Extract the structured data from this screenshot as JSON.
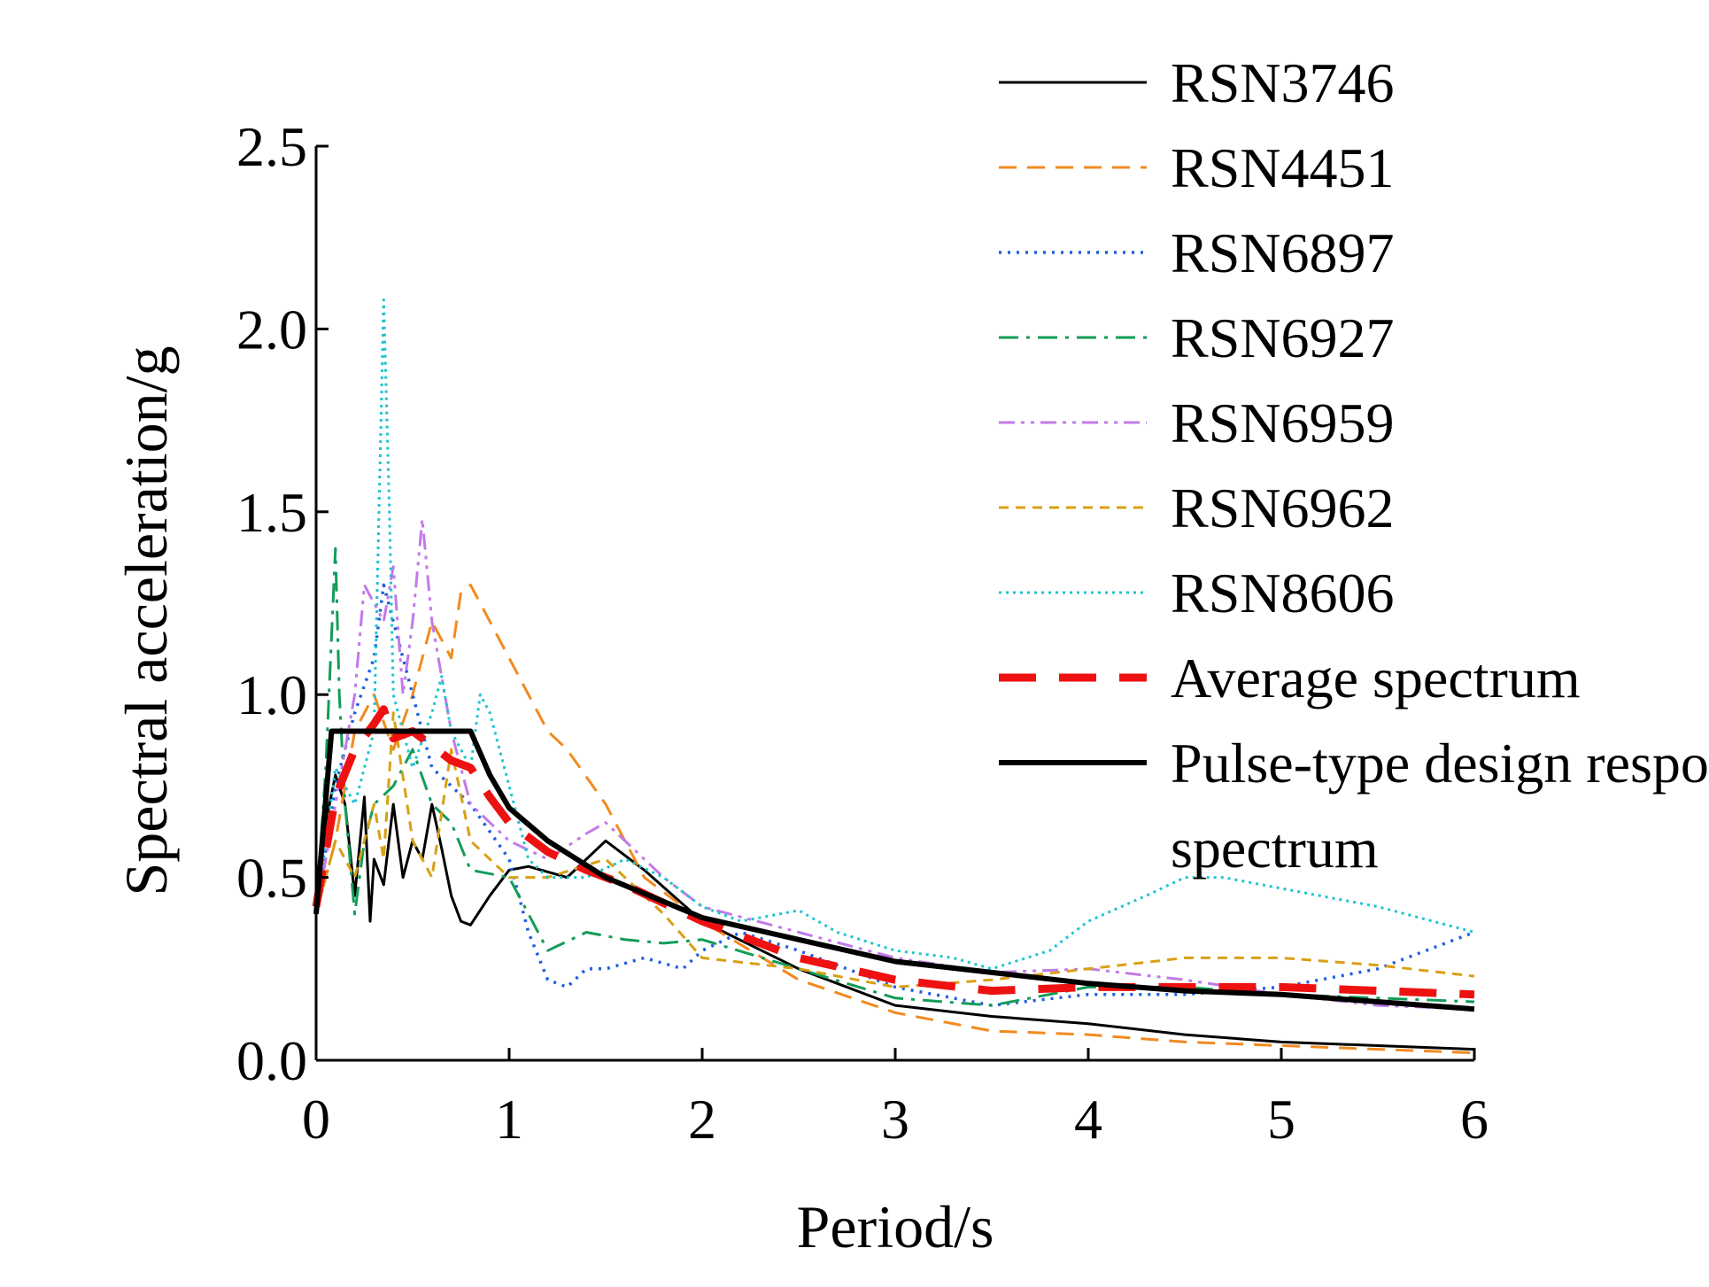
{
  "chart_data": {
    "type": "line",
    "title": "",
    "xlabel": "Period/s",
    "ylabel": "Spectral acceleration/g",
    "xlim": [
      0,
      6
    ],
    "ylim": [
      0,
      2.5
    ],
    "xticks": [
      "0",
      "1",
      "2",
      "3",
      "4",
      "5",
      "6"
    ],
    "yticks": [
      "0.0",
      "0.5",
      "1.0",
      "1.5",
      "2.0",
      "2.5"
    ],
    "grid": false,
    "legend_position": "top-right",
    "series": [
      {
        "name": "RSN3746",
        "color": "#000000",
        "style": "solid",
        "x": [
          0.0,
          0.05,
          0.1,
          0.15,
          0.2,
          0.25,
          0.28,
          0.3,
          0.35,
          0.4,
          0.45,
          0.5,
          0.55,
          0.6,
          0.65,
          0.7,
          0.75,
          0.8,
          0.9,
          1.0,
          1.1,
          1.3,
          1.5,
          1.7,
          2.0,
          2.5,
          3.0,
          3.5,
          4.0,
          4.5,
          5.0,
          5.5,
          6.0
        ],
        "y": [
          0.4,
          0.65,
          0.78,
          0.7,
          0.45,
          0.72,
          0.38,
          0.55,
          0.48,
          0.7,
          0.5,
          0.6,
          0.55,
          0.7,
          0.58,
          0.45,
          0.38,
          0.37,
          0.45,
          0.52,
          0.53,
          0.5,
          0.6,
          0.52,
          0.38,
          0.25,
          0.15,
          0.12,
          0.1,
          0.07,
          0.05,
          0.04,
          0.03
        ]
      },
      {
        "name": "RSN4451",
        "color": "#f28a1f",
        "style": "dashed",
        "x": [
          0.0,
          0.1,
          0.2,
          0.3,
          0.4,
          0.5,
          0.6,
          0.7,
          0.75,
          0.8,
          0.9,
          1.0,
          1.2,
          1.3,
          1.5,
          1.7,
          2.0,
          2.5,
          3.0,
          3.5,
          4.0,
          4.5,
          5.0,
          5.5,
          6.0
        ],
        "y": [
          0.4,
          0.6,
          0.9,
          1.0,
          0.85,
          1.0,
          1.2,
          1.1,
          1.28,
          1.3,
          1.2,
          1.1,
          0.9,
          0.85,
          0.7,
          0.5,
          0.38,
          0.22,
          0.13,
          0.08,
          0.07,
          0.05,
          0.04,
          0.03,
          0.02
        ]
      },
      {
        "name": "RSN6897",
        "color": "#1f5fe0",
        "style": "dotted",
        "x": [
          0.0,
          0.1,
          0.2,
          0.3,
          0.35,
          0.4,
          0.5,
          0.6,
          0.7,
          0.8,
          1.0,
          1.1,
          1.2,
          1.3,
          1.4,
          1.5,
          1.7,
          1.9,
          2.0,
          2.2,
          2.5,
          3.0,
          3.5,
          4.0,
          4.5,
          5.0,
          5.5,
          6.0
        ],
        "y": [
          0.4,
          0.75,
          0.95,
          1.1,
          1.3,
          1.2,
          1.0,
          0.8,
          0.75,
          0.7,
          0.55,
          0.35,
          0.22,
          0.2,
          0.25,
          0.25,
          0.28,
          0.25,
          0.3,
          0.35,
          0.3,
          0.2,
          0.15,
          0.18,
          0.18,
          0.2,
          0.25,
          0.35
        ]
      },
      {
        "name": "RSN6927",
        "color": "#139c58",
        "style": "dashdot",
        "x": [
          0.0,
          0.05,
          0.1,
          0.12,
          0.15,
          0.2,
          0.25,
          0.3,
          0.4,
          0.5,
          0.6,
          0.7,
          0.8,
          1.0,
          1.2,
          1.4,
          1.6,
          1.8,
          2.0,
          2.5,
          3.0,
          3.5,
          4.0,
          4.5,
          5.0,
          5.5,
          6.0
        ],
        "y": [
          0.4,
          0.8,
          1.4,
          1.0,
          0.7,
          0.4,
          0.6,
          0.7,
          0.75,
          0.85,
          0.7,
          0.65,
          0.52,
          0.5,
          0.3,
          0.35,
          0.33,
          0.32,
          0.33,
          0.25,
          0.17,
          0.15,
          0.2,
          0.2,
          0.18,
          0.17,
          0.16
        ]
      },
      {
        "name": "RSN6959",
        "color": "#c27ae8",
        "style": "dashdotdot",
        "x": [
          0.0,
          0.1,
          0.2,
          0.25,
          0.3,
          0.35,
          0.4,
          0.45,
          0.5,
          0.55,
          0.6,
          0.7,
          0.8,
          0.9,
          1.0,
          1.2,
          1.4,
          1.5,
          1.6,
          1.8,
          2.0,
          2.5,
          3.0,
          3.5,
          4.0,
          4.5,
          5.0,
          5.5,
          6.0
        ],
        "y": [
          0.4,
          0.7,
          1.0,
          1.3,
          1.25,
          1.2,
          1.35,
          1.0,
          1.2,
          1.48,
          1.2,
          0.9,
          0.7,
          0.65,
          0.6,
          0.55,
          0.62,
          0.65,
          0.6,
          0.5,
          0.42,
          0.35,
          0.28,
          0.24,
          0.25,
          0.22,
          0.18,
          0.15,
          0.14
        ]
      },
      {
        "name": "RSN6962",
        "color": "#d9a015",
        "style": "dashed-fine",
        "x": [
          0.0,
          0.1,
          0.2,
          0.3,
          0.35,
          0.4,
          0.5,
          0.6,
          0.7,
          0.8,
          0.9,
          1.0,
          1.2,
          1.5,
          1.8,
          2.0,
          2.5,
          3.0,
          3.5,
          4.0,
          4.5,
          5.0,
          5.5,
          6.0
        ],
        "y": [
          0.4,
          0.6,
          0.5,
          0.7,
          0.55,
          0.95,
          0.6,
          0.5,
          0.85,
          0.6,
          0.55,
          0.5,
          0.5,
          0.55,
          0.4,
          0.28,
          0.25,
          0.2,
          0.22,
          0.25,
          0.28,
          0.28,
          0.26,
          0.23
        ]
      },
      {
        "name": "RSN8606",
        "color": "#1fc4cf",
        "style": "dotted-fine",
        "x": [
          0.0,
          0.1,
          0.2,
          0.3,
          0.33,
          0.35,
          0.38,
          0.4,
          0.5,
          0.6,
          0.65,
          0.7,
          0.8,
          0.85,
          0.9,
          1.0,
          1.1,
          1.2,
          1.4,
          1.6,
          1.8,
          2.0,
          2.2,
          2.5,
          2.7,
          3.0,
          3.3,
          3.5,
          3.8,
          4.0,
          4.3,
          4.5,
          4.7,
          5.0,
          5.5,
          6.0
        ],
        "y": [
          0.4,
          0.8,
          0.7,
          0.9,
          1.6,
          2.08,
          1.5,
          1.0,
          0.8,
          0.95,
          1.05,
          0.9,
          0.8,
          1.0,
          0.95,
          0.75,
          0.55,
          0.5,
          0.5,
          0.55,
          0.5,
          0.42,
          0.38,
          0.41,
          0.35,
          0.3,
          0.28,
          0.25,
          0.3,
          0.38,
          0.45,
          0.5,
          0.5,
          0.47,
          0.42,
          0.35
        ]
      },
      {
        "name": "Average spectrum",
        "color": "#ee1111",
        "style": "dashed-thick",
        "x": [
          0.0,
          0.1,
          0.2,
          0.3,
          0.35,
          0.4,
          0.5,
          0.6,
          0.7,
          0.8,
          0.9,
          1.0,
          1.2,
          1.4,
          1.6,
          1.8,
          2.0,
          2.5,
          3.0,
          3.5,
          4.0,
          4.5,
          5.0,
          5.5,
          6.0
        ],
        "y": [
          0.42,
          0.72,
          0.85,
          0.92,
          0.96,
          0.88,
          0.9,
          0.86,
          0.82,
          0.8,
          0.72,
          0.65,
          0.57,
          0.52,
          0.48,
          0.43,
          0.38,
          0.28,
          0.22,
          0.19,
          0.2,
          0.2,
          0.2,
          0.19,
          0.18
        ]
      },
      {
        "name": "Pulse-type design response spectrum",
        "color": "#000000",
        "style": "solid-thick",
        "x": [
          0.0,
          0.08,
          0.1,
          0.8,
          0.9,
          1.0,
          1.2,
          1.5,
          2.0,
          2.5,
          3.0,
          3.5,
          4.0,
          4.5,
          5.0,
          5.5,
          6.0
        ],
        "y": [
          0.4,
          0.9,
          0.9,
          0.9,
          0.78,
          0.69,
          0.6,
          0.5,
          0.39,
          0.33,
          0.27,
          0.24,
          0.21,
          0.19,
          0.18,
          0.16,
          0.14
        ]
      }
    ]
  }
}
